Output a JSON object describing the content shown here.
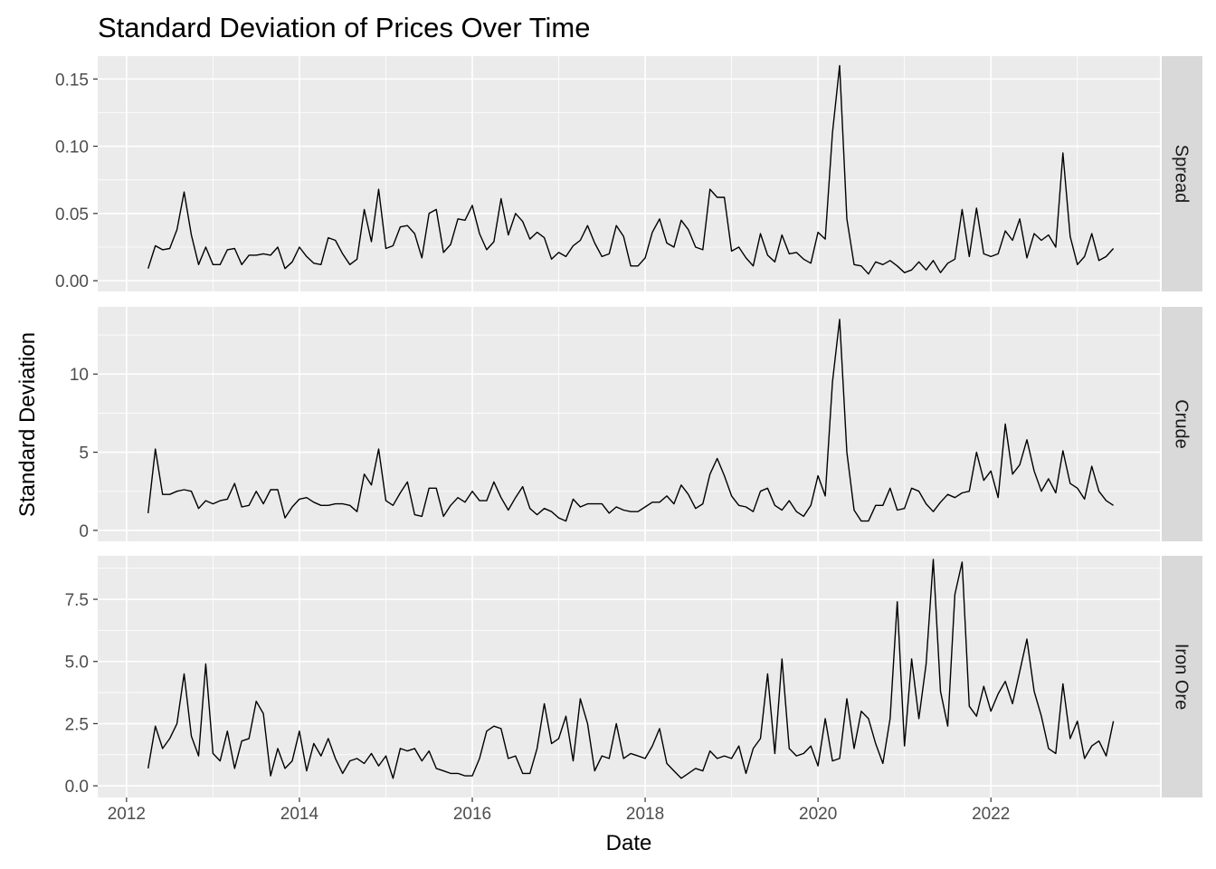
{
  "chart_data": {
    "type": "line",
    "title": "Standard Deviation of Prices Over Time",
    "xlabel": "Date",
    "ylabel": "Standard Deviation",
    "x_ticks": [
      "2012",
      "2014",
      "2016",
      "2018",
      "2020",
      "2022"
    ],
    "xlim": [
      "2011-09-01",
      "2023-12-15"
    ],
    "grid": true,
    "line_color": "#000000",
    "panel_background": "#ebebeb",
    "strip_background": "#d9d9d9",
    "x": [
      "2012-04",
      "2012-05",
      "2012-06",
      "2012-07",
      "2012-08",
      "2012-09",
      "2012-10",
      "2012-11",
      "2012-12",
      "2013-01",
      "2013-02",
      "2013-03",
      "2013-04",
      "2013-05",
      "2013-06",
      "2013-07",
      "2013-08",
      "2013-09",
      "2013-10",
      "2013-11",
      "2013-12",
      "2014-01",
      "2014-02",
      "2014-03",
      "2014-04",
      "2014-05",
      "2014-06",
      "2014-07",
      "2014-08",
      "2014-09",
      "2014-10",
      "2014-11",
      "2014-12",
      "2015-01",
      "2015-02",
      "2015-03",
      "2015-04",
      "2015-05",
      "2015-06",
      "2015-07",
      "2015-08",
      "2015-09",
      "2015-10",
      "2015-11",
      "2015-12",
      "2016-01",
      "2016-02",
      "2016-03",
      "2016-04",
      "2016-05",
      "2016-06",
      "2016-07",
      "2016-08",
      "2016-09",
      "2016-10",
      "2016-11",
      "2016-12",
      "2017-01",
      "2017-02",
      "2017-03",
      "2017-04",
      "2017-05",
      "2017-06",
      "2017-07",
      "2017-08",
      "2017-09",
      "2017-10",
      "2017-11",
      "2017-12",
      "2018-01",
      "2018-02",
      "2018-03",
      "2018-04",
      "2018-05",
      "2018-06",
      "2018-07",
      "2018-08",
      "2018-09",
      "2018-10",
      "2018-11",
      "2018-12",
      "2019-01",
      "2019-02",
      "2019-03",
      "2019-04",
      "2019-05",
      "2019-06",
      "2019-07",
      "2019-08",
      "2019-09",
      "2019-10",
      "2019-11",
      "2019-12",
      "2020-01",
      "2020-02",
      "2020-03",
      "2020-04",
      "2020-05",
      "2020-06",
      "2020-07",
      "2020-08",
      "2020-09",
      "2020-10",
      "2020-11",
      "2020-12",
      "2021-01",
      "2021-02",
      "2021-03",
      "2021-04",
      "2021-05",
      "2021-06",
      "2021-07",
      "2021-08",
      "2021-09",
      "2021-10",
      "2021-11",
      "2021-12",
      "2022-01",
      "2022-02",
      "2022-03",
      "2022-04",
      "2022-05",
      "2022-06",
      "2022-07",
      "2022-08",
      "2022-09",
      "2022-10",
      "2022-11",
      "2022-12",
      "2023-01",
      "2023-02",
      "2023-03",
      "2023-04",
      "2023-05",
      "2023-06"
    ],
    "panels": [
      {
        "name": "Spread",
        "y_ticks": [
          "0.00",
          "0.05",
          "0.10",
          "0.15"
        ],
        "ylim": [
          -0.008,
          0.167
        ],
        "values": [
          0.009,
          0.026,
          0.023,
          0.024,
          0.038,
          0.066,
          0.034,
          0.012,
          0.025,
          0.012,
          0.012,
          0.023,
          0.024,
          0.012,
          0.019,
          0.019,
          0.02,
          0.019,
          0.025,
          0.009,
          0.014,
          0.025,
          0.018,
          0.013,
          0.012,
          0.032,
          0.03,
          0.02,
          0.012,
          0.016,
          0.053,
          0.029,
          0.068,
          0.024,
          0.026,
          0.04,
          0.041,
          0.035,
          0.017,
          0.05,
          0.053,
          0.021,
          0.027,
          0.046,
          0.045,
          0.056,
          0.035,
          0.023,
          0.029,
          0.061,
          0.034,
          0.05,
          0.044,
          0.031,
          0.036,
          0.032,
          0.016,
          0.021,
          0.018,
          0.026,
          0.03,
          0.041,
          0.028,
          0.018,
          0.02,
          0.041,
          0.033,
          0.011,
          0.011,
          0.017,
          0.036,
          0.046,
          0.028,
          0.025,
          0.045,
          0.038,
          0.025,
          0.023,
          0.068,
          0.062,
          0.062,
          0.022,
          0.025,
          0.017,
          0.011,
          0.035,
          0.019,
          0.014,
          0.034,
          0.02,
          0.021,
          0.016,
          0.013,
          0.036,
          0.031,
          0.11,
          0.16,
          0.046,
          0.012,
          0.011,
          0.005,
          0.014,
          0.012,
          0.015,
          0.011,
          0.006,
          0.008,
          0.014,
          0.008,
          0.015,
          0.006,
          0.013,
          0.016,
          0.053,
          0.018,
          0.054,
          0.02,
          0.018,
          0.02,
          0.037,
          0.03,
          0.046,
          0.017,
          0.035,
          0.03,
          0.034,
          0.025,
          0.095,
          0.033,
          0.012,
          0.018,
          0.035,
          0.015,
          0.018,
          0.024
        ]
      },
      {
        "name": "Crude",
        "y_ticks": [
          "0",
          "5",
          "10"
        ],
        "ylim": [
          -0.7,
          14.3
        ],
        "values": [
          1.1,
          5.2,
          2.3,
          2.3,
          2.5,
          2.6,
          2.5,
          1.4,
          1.9,
          1.7,
          1.9,
          2.0,
          3.0,
          1.5,
          1.6,
          2.5,
          1.7,
          2.6,
          2.6,
          0.8,
          1.5,
          2.0,
          2.1,
          1.8,
          1.6,
          1.6,
          1.7,
          1.7,
          1.6,
          1.2,
          3.6,
          2.9,
          5.2,
          1.9,
          1.6,
          2.4,
          3.1,
          1.0,
          0.9,
          2.7,
          2.7,
          0.9,
          1.6,
          2.1,
          1.8,
          2.5,
          1.9,
          1.9,
          3.1,
          2.1,
          1.3,
          2.1,
          2.8,
          1.4,
          1.0,
          1.4,
          1.2,
          0.8,
          0.6,
          2.0,
          1.5,
          1.7,
          1.7,
          1.7,
          1.1,
          1.5,
          1.3,
          1.2,
          1.2,
          1.5,
          1.8,
          1.8,
          2.2,
          1.7,
          2.9,
          2.3,
          1.4,
          1.7,
          3.6,
          4.6,
          3.5,
          2.2,
          1.6,
          1.5,
          1.2,
          2.5,
          2.7,
          1.6,
          1.3,
          1.9,
          1.2,
          0.9,
          1.6,
          3.5,
          2.2,
          9.5,
          13.5,
          5.0,
          1.3,
          0.6,
          0.6,
          1.6,
          1.6,
          2.7,
          1.3,
          1.4,
          2.7,
          2.5,
          1.7,
          1.2,
          1.8,
          2.3,
          2.1,
          2.4,
          2.5,
          5.0,
          3.2,
          3.8,
          2.1,
          6.8,
          3.6,
          4.2,
          5.8,
          3.8,
          2.5,
          3.3,
          2.4,
          5.1,
          3.0,
          2.7,
          2.0,
          4.1,
          2.5,
          1.9,
          1.6
        ]
      },
      {
        "name": "Iron Ore",
        "y_ticks": [
          "0.0",
          "2.5",
          "5.0",
          "7.5"
        ],
        "ylim": [
          -0.47,
          9.25
        ],
        "values": [
          0.7,
          2.4,
          1.5,
          1.9,
          2.5,
          4.5,
          2.0,
          1.2,
          4.9,
          1.3,
          1.0,
          2.2,
          0.7,
          1.8,
          1.9,
          3.4,
          2.9,
          0.4,
          1.5,
          0.7,
          1.0,
          2.2,
          0.6,
          1.7,
          1.2,
          1.9,
          1.1,
          0.5,
          1.0,
          1.1,
          0.9,
          1.3,
          0.8,
          1.2,
          0.3,
          1.5,
          1.4,
          1.5,
          1.0,
          1.4,
          0.7,
          0.6,
          0.5,
          0.5,
          0.4,
          0.4,
          1.1,
          2.2,
          2.4,
          2.3,
          1.1,
          1.2,
          0.5,
          0.5,
          1.5,
          3.3,
          1.7,
          1.9,
          2.8,
          1.0,
          3.5,
          2.5,
          0.6,
          1.2,
          1.1,
          2.5,
          1.1,
          1.3,
          1.2,
          1.1,
          1.6,
          2.3,
          0.9,
          0.6,
          0.3,
          0.5,
          0.7,
          0.6,
          1.4,
          1.1,
          1.2,
          1.1,
          1.6,
          0.5,
          1.5,
          1.9,
          4.5,
          1.3,
          5.1,
          1.5,
          1.2,
          1.3,
          1.6,
          0.8,
          2.7,
          1.0,
          1.1,
          3.5,
          1.5,
          3.0,
          2.7,
          1.7,
          0.9,
          2.7,
          7.4,
          1.6,
          5.1,
          2.7,
          4.9,
          9.1,
          3.8,
          2.4,
          7.7,
          9.0,
          3.2,
          2.8,
          4.0,
          3.0,
          3.7,
          4.2,
          3.3,
          4.6,
          5.9,
          3.8,
          2.8,
          1.5,
          1.3,
          4.1,
          1.9,
          2.6,
          1.1,
          1.6,
          1.8,
          1.2,
          2.6
        ]
      }
    ]
  }
}
